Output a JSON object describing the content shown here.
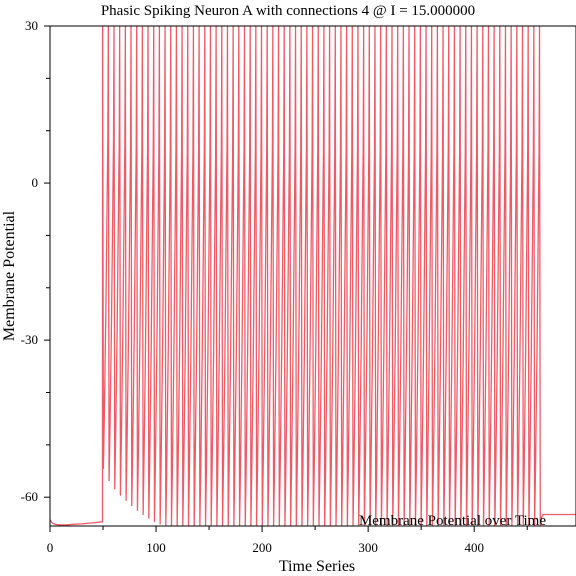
{
  "chart_data": {
    "type": "line",
    "title": "Phasic Spiking Neuron A with connections 4 @ I = 15.000000",
    "xlabel": "Time Series",
    "ylabel": "Membrane Potential",
    "xlim": [
      0,
      496
    ],
    "ylim": [
      -65.5,
      30
    ],
    "x_ticks": [
      0,
      100,
      200,
      300,
      400
    ],
    "y_ticks": [
      -60,
      -30,
      0,
      30
    ],
    "grid": false,
    "legend_position": "bottom-right",
    "series": [
      {
        "name": "Membrane Potential over Time",
        "color": "#f05a64",
        "resting_segment": {
          "x": [
            0,
            2,
            5,
            10,
            15,
            20,
            30,
            40,
            49.5
          ],
          "y": [
            -64.3,
            -64.9,
            -65.2,
            -65.3,
            -65.3,
            -65.2,
            -65.1,
            -64.9,
            -64.7
          ]
        },
        "stimulus_onset": 49.5,
        "first_spike_peak": 30,
        "spike_peak": 30,
        "spike_period": 5.35,
        "reset_minima": [
          -54.5,
          -56.8,
          -58.4,
          -59.6,
          -60.6,
          -61.6,
          -62.5,
          -63.3,
          -64.0,
          -64.6,
          -65.1
        ],
        "steady_reset_minimum": -65.4,
        "tail": {
          "x": [
            465,
            496
          ],
          "y": [
            -63.3,
            -63.3
          ]
        }
      }
    ]
  }
}
